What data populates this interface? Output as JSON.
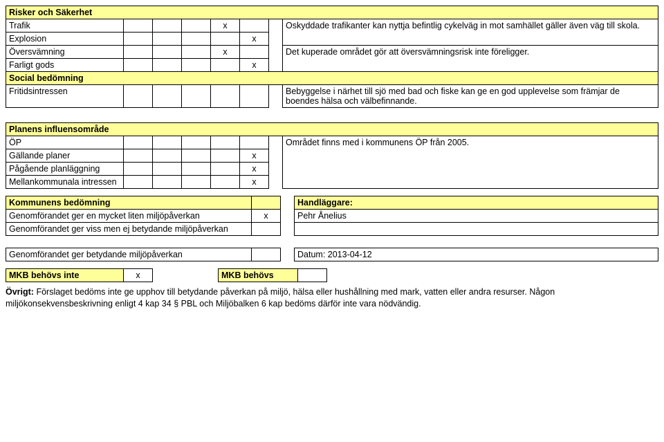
{
  "mark": "x",
  "section1": {
    "header": "Risker och Säkerhet",
    "rows": [
      {
        "label": "Trafik",
        "c": [
          0,
          0,
          0,
          1,
          0
        ],
        "desc": "Oskyddade trafikanter kan nyttja befintlig cykelväg in mot samhället gäller även väg till skola."
      },
      {
        "label": "Explosion",
        "c": [
          0,
          0,
          0,
          0,
          1
        ],
        "desc": ""
      },
      {
        "label": "Översvämning",
        "c": [
          0,
          0,
          0,
          1,
          0
        ],
        "desc": "Det kuperade området gör att översvämningsrisk inte föreligger."
      },
      {
        "label": "Farligt gods",
        "c": [
          0,
          0,
          0,
          0,
          1
        ],
        "desc": ""
      }
    ]
  },
  "section2": {
    "header": "Social bedömning",
    "rows": [
      {
        "label": "Fritidsintressen",
        "c": [
          0,
          0,
          0,
          0,
          0
        ],
        "desc": "Bebyggelse i närhet till sjö med bad och fiske kan ge   en god upplevelse som främjar de boendes hälsa och välbefinnande."
      }
    ]
  },
  "section3": {
    "header": "Planens influensområde",
    "rows": [
      {
        "label": "ÖP",
        "c": [
          0,
          0,
          0,
          0,
          0
        ],
        "desc": "Området finns med i kommunens ÖP från 2005."
      },
      {
        "label": "Gällande planer",
        "c": [
          0,
          0,
          0,
          0,
          1
        ],
        "desc": ""
      },
      {
        "label": "Pågående planläggning",
        "c": [
          0,
          0,
          0,
          0,
          1
        ],
        "desc": ""
      },
      {
        "label": "Mellankommunala intressen",
        "c": [
          0,
          0,
          0,
          0,
          1
        ],
        "desc": ""
      }
    ]
  },
  "section4": {
    "leftHeader": "Kommunens bedömning",
    "rightHeader": "Handläggare:",
    "rows": [
      {
        "label": "Genomförandet ger en mycket liten miljöpåverkan",
        "chk": 1,
        "right": "Pehr Ånelius"
      },
      {
        "label": "Genomförandet ger viss men ej betydande miljöpåverkan",
        "chk": 0,
        "right": ""
      }
    ],
    "lastLabel": "Genomförandet ger betydande miljöpåverkan",
    "lastRight": "Datum: 2013-04-12"
  },
  "mkb": {
    "leftLabel": "MKB behövs inte",
    "leftChk": 1,
    "rightLabel": "MKB behövs"
  },
  "footer": "Övrigt: Förslaget bedöms inte ge upphov till betydande påverkan på miljö, hälsa eller hushållning med mark, vatten eller andra resurser. Någon miljökonsekvensbeskrivning enligt 4 kap 34 § PBL och Miljöbalken 6 kap bedöms därför inte vara nödvändig.",
  "footerBoldPrefix": "Övrigt:"
}
